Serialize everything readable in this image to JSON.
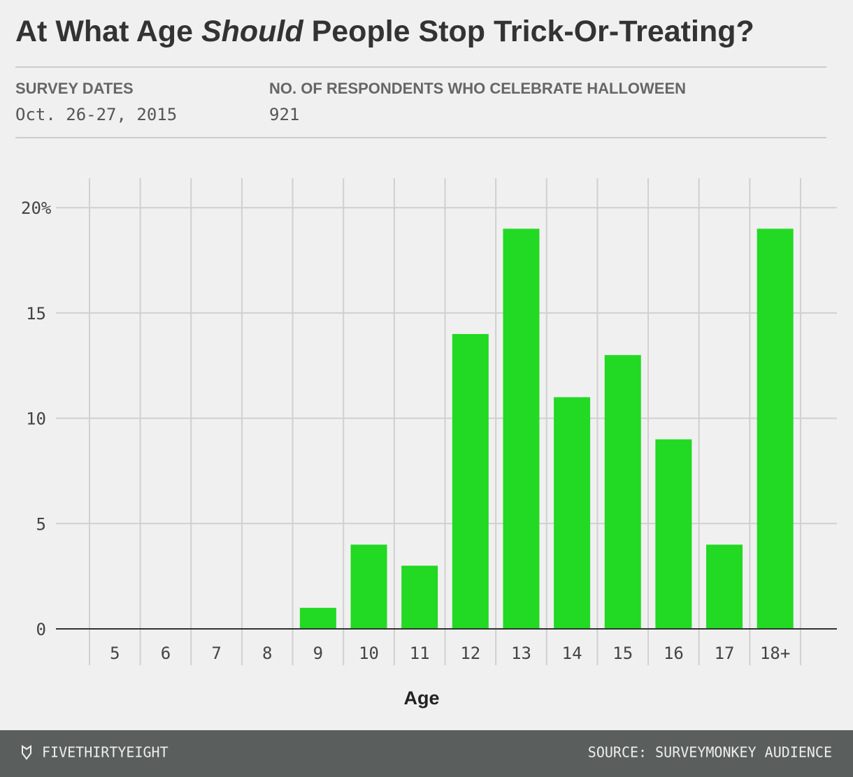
{
  "header": {
    "fields": [
      {
        "label": "SURVEY DATES",
        "value": "Oct. 26-27, 2015"
      },
      {
        "label": "NO. OF RESPONDENTS WHO CELEBRATE HALLOWEEN",
        "value": "921"
      }
    ]
  },
  "chart_data": {
    "type": "bar",
    "title_parts": [
      "At What Age ",
      "Should",
      " People Stop Trick-Or-Treating?"
    ],
    "x_label": "Age",
    "categories": [
      "5",
      "6",
      "7",
      "8",
      "9",
      "10",
      "11",
      "12",
      "13",
      "14",
      "15",
      "16",
      "17",
      "18+"
    ],
    "values": [
      0,
      0,
      0,
      0,
      1,
      4,
      3,
      14,
      19,
      11,
      13,
      9,
      4,
      19
    ],
    "color": "#22d923",
    "ylim": [
      0,
      21.4
    ],
    "yticks": [
      0,
      5,
      10,
      15,
      {
        "value": 20,
        "label": "20%"
      }
    ],
    "grid": true
  },
  "footer": {
    "brand": "FIVETHIRTYEIGHT",
    "source": "SOURCE: SURVEYMONKEY AUDIENCE"
  }
}
